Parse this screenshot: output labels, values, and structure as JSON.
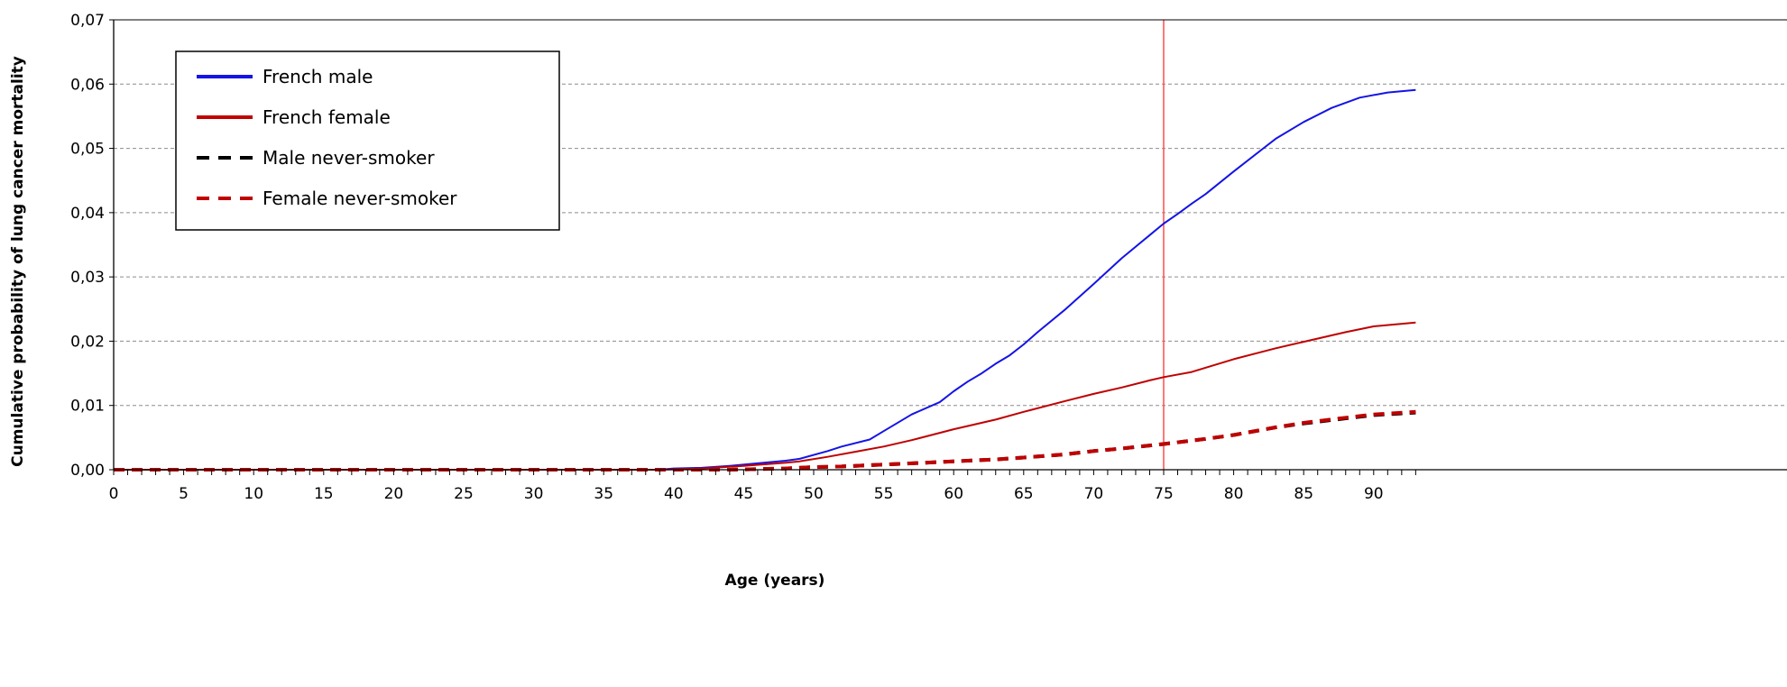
{
  "chart_data": {
    "type": "line",
    "xlabel": "Age (years)",
    "ylabel": "Cumulative probability of lung cancer mortality",
    "xlim": [
      0,
      93
    ],
    "ylim": [
      0,
      0.07
    ],
    "x_ticks": [
      "0",
      "5",
      "10",
      "15",
      "20",
      "25",
      "30",
      "35",
      "40",
      "45",
      "50",
      "55",
      "60",
      "65",
      "70",
      "75",
      "80",
      "85",
      "90"
    ],
    "y_ticks": [
      "0,00",
      "0,01",
      "0,02",
      "0,03",
      "0,04",
      "0,05",
      "0,06",
      "0,07"
    ],
    "grid": "horizontal-dashed",
    "legend_position": "top-left",
    "reference_line": {
      "x": 75,
      "color": "#ff4d4d"
    },
    "series": [
      {
        "name": "French male",
        "color": "#1414e6",
        "style": "solid",
        "x": [
          0,
          39,
          40,
          42,
          44,
          46,
          48,
          49,
          51,
          52,
          54,
          55,
          57,
          59,
          60,
          61,
          62,
          63,
          64,
          65,
          66,
          68,
          70,
          72,
          74,
          75,
          76,
          77,
          78,
          80,
          82,
          83,
          85,
          87,
          89,
          91,
          93
        ],
        "values": [
          0,
          0,
          0.0002,
          0.0003,
          0.0006,
          0.001,
          0.0014,
          0.0017,
          0.0029,
          0.0036,
          0.0047,
          0.006,
          0.0086,
          0.0105,
          0.0122,
          0.0137,
          0.015,
          0.0165,
          0.0178,
          0.0195,
          0.0214,
          0.025,
          0.0289,
          0.0329,
          0.0365,
          0.0383,
          0.0398,
          0.0414,
          0.0429,
          0.0464,
          0.0498,
          0.0515,
          0.0541,
          0.0563,
          0.0579,
          0.0587,
          0.0591
        ]
      },
      {
        "name": "French female",
        "color": "#c00000",
        "style": "solid",
        "x": [
          0,
          39,
          42,
          45,
          48,
          49,
          51,
          53,
          55,
          57,
          60,
          63,
          65,
          68,
          70,
          72,
          74,
          75,
          77,
          80,
          83,
          85,
          88,
          90,
          93
        ],
        "values": [
          0,
          0,
          0.0002,
          0.0006,
          0.0011,
          0.0013,
          0.002,
          0.0028,
          0.0036,
          0.0046,
          0.0063,
          0.0078,
          0.009,
          0.0107,
          0.0118,
          0.0128,
          0.0139,
          0.0144,
          0.0152,
          0.0172,
          0.0189,
          0.0199,
          0.0214,
          0.0223,
          0.0229
        ]
      },
      {
        "name": "Male never-smoker",
        "color": "#000000",
        "style": "dashed",
        "x": [
          0,
          44,
          46,
          48,
          50,
          52,
          55,
          58,
          60,
          63,
          65,
          68,
          70,
          72,
          75,
          78,
          80,
          83,
          85,
          88,
          90,
          93
        ],
        "values": [
          0,
          0,
          0.0001,
          0.0002,
          0.0004,
          0.0005,
          0.0008,
          0.0011,
          0.0013,
          0.0016,
          0.0019,
          0.0024,
          0.0029,
          0.0033,
          0.004,
          0.0048,
          0.0054,
          0.0066,
          0.0072,
          0.008,
          0.0085,
          0.0089
        ]
      },
      {
        "name": "Female never-smoker",
        "color": "#c00000",
        "style": "dashed",
        "x": [
          0,
          44,
          46,
          48,
          50,
          52,
          55,
          58,
          60,
          63,
          65,
          68,
          70,
          72,
          75,
          78,
          80,
          83,
          85,
          88,
          90,
          93
        ],
        "values": [
          0,
          0,
          0.0001,
          0.0002,
          0.0004,
          0.0005,
          0.0008,
          0.0011,
          0.0013,
          0.0016,
          0.0019,
          0.0024,
          0.0029,
          0.0033,
          0.004,
          0.0048,
          0.0054,
          0.0066,
          0.0073,
          0.0081,
          0.0086,
          0.009
        ]
      }
    ]
  }
}
